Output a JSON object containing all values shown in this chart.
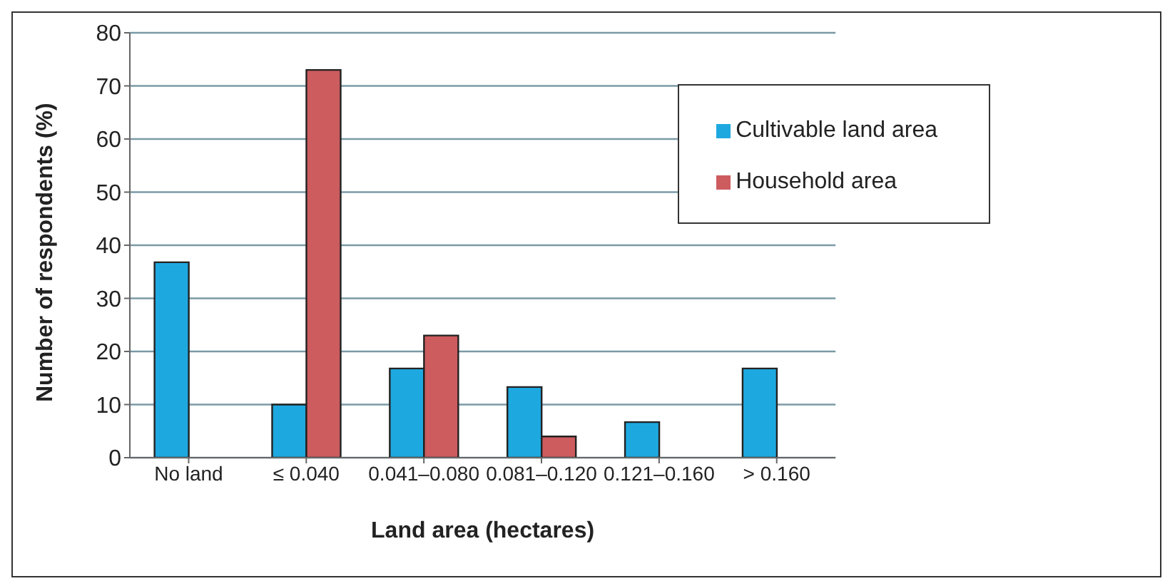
{
  "chart_data": {
    "type": "bar",
    "xlabel": "Land area (hectares)",
    "ylabel": "Number of respondents (%)",
    "categories": [
      "No  land",
      "≤ 0.040",
      "0.041–0.080",
      "0.081–0.120",
      "0.121–0.160",
      "> 0.160"
    ],
    "series": [
      {
        "name": "Cultivable land area",
        "color": "#1ea8e0",
        "values": [
          36.8,
          10,
          16.8,
          13.3,
          6.7,
          16.8
        ]
      },
      {
        "name": "Household area",
        "color": "#cd5c5f",
        "values": [
          null,
          73,
          23,
          4,
          null,
          null
        ]
      }
    ],
    "ylim": [
      0,
      80
    ],
    "yticks": [
      0,
      10,
      20,
      30,
      40,
      50,
      60,
      70,
      80
    ],
    "grid": "y",
    "legend": "top right"
  }
}
